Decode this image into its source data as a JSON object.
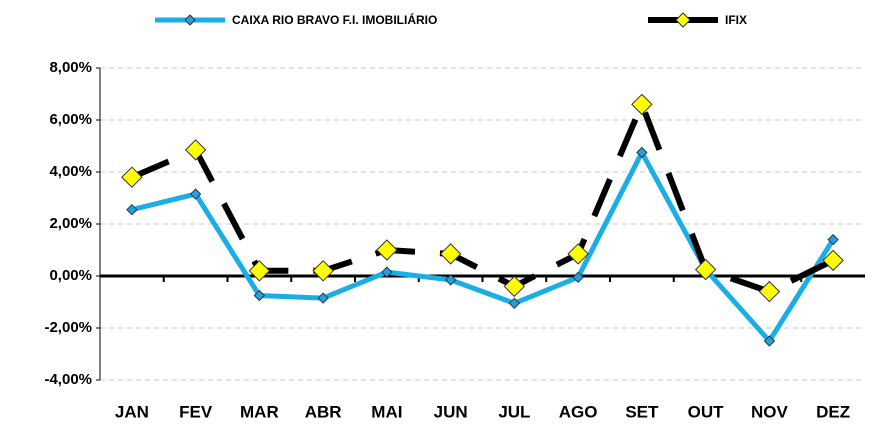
{
  "chart_data": {
    "type": "line",
    "categories": [
      "JAN",
      "FEV",
      "MAR",
      "ABR",
      "MAI",
      "JUN",
      "JUL",
      "AGO",
      "SET",
      "OUT",
      "NOV",
      "DEZ"
    ],
    "series": [
      {
        "name": "CAIXA RIO BRAVO F.I. IMOBILIÁRIO",
        "color": "#1aaee6",
        "marker_color": "#2a9fd6",
        "line_style": "solid",
        "values": [
          2.55,
          3.15,
          -0.75,
          -0.85,
          0.15,
          -0.15,
          -1.05,
          -0.05,
          4.75,
          0.25,
          -2.5,
          1.4
        ]
      },
      {
        "name": "IFIX",
        "color": "#000000",
        "marker_color": "#ffff00",
        "line_style": "dashed",
        "values": [
          3.8,
          4.85,
          0.2,
          0.2,
          1.0,
          0.85,
          -0.4,
          0.85,
          6.6,
          0.25,
          -0.6,
          0.6
        ]
      }
    ],
    "ylim": [
      -4,
      8
    ],
    "yticks": [
      {
        "value": -4,
        "label": "-4,00%"
      },
      {
        "value": -2,
        "label": "-2,00%"
      },
      {
        "value": 0,
        "label": "0,00%"
      },
      {
        "value": 2,
        "label": "2,00%"
      },
      {
        "value": 4,
        "label": "4,00%"
      },
      {
        "value": 6,
        "label": "6,00%"
      },
      {
        "value": 8,
        "label": "8,00%"
      }
    ],
    "grid": true,
    "legend": "top"
  }
}
